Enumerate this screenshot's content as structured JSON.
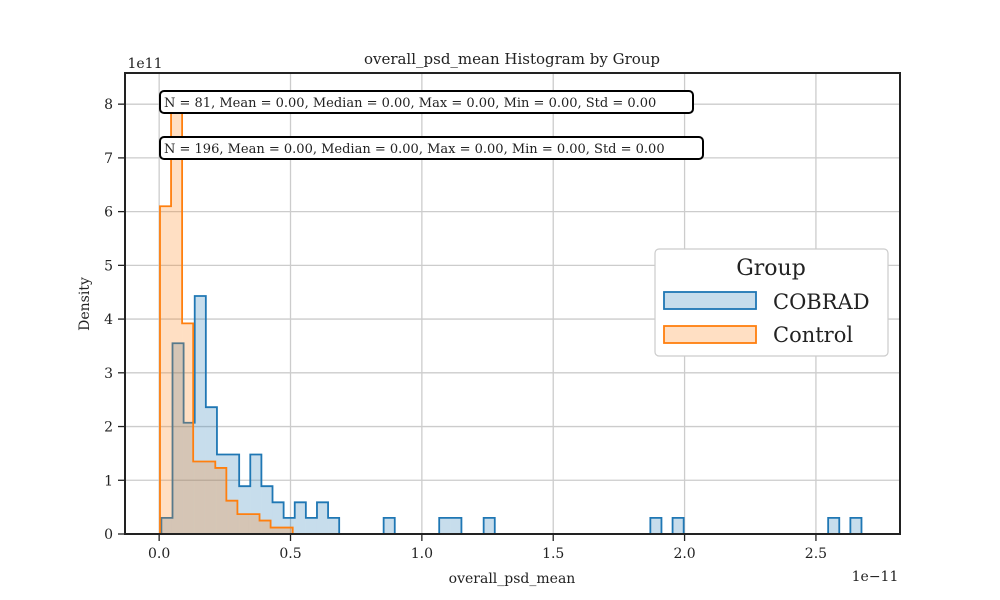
{
  "chart_data": {
    "type": "histogram",
    "title": "overall_psd_mean Histogram by Group",
    "xlabel": "overall_psd_mean",
    "ylabel": "Density",
    "x_offset_label": "1e−11",
    "y_offset_label": "1e11",
    "xlim": [
      -0.13,
      2.82
    ],
    "ylim": [
      0,
      8.58
    ],
    "x_ticks": [
      0.0,
      0.5,
      1.0,
      1.5,
      2.0,
      2.5
    ],
    "x_tick_labels": [
      "0.0",
      "0.5",
      "1.0",
      "1.5",
      "2.0",
      "2.5"
    ],
    "y_ticks": [
      0,
      1,
      2,
      3,
      4,
      5,
      6,
      7,
      8
    ],
    "y_tick_labels": [
      "0",
      "1",
      "2",
      "3",
      "4",
      "5",
      "6",
      "7",
      "8"
    ],
    "grid": true,
    "legend": {
      "title": "Group",
      "placement": "center-right",
      "entries": [
        "COBRAD",
        "Control"
      ]
    },
    "series": [
      {
        "name": "COBRAD",
        "stroke": "#1f77b4",
        "fill": "#1f77b4",
        "bin_edges": [
          0.0085,
          0.0508,
          0.0931,
          0.1354,
          0.1777,
          0.22,
          0.2623,
          0.3046,
          0.3469,
          0.3892,
          0.4315,
          0.4738,
          0.5161,
          0.5584,
          0.6007,
          0.643,
          0.6853,
          0.7276,
          0.7699,
          0.8122,
          0.8545,
          0.8968,
          0.9391,
          0.9814,
          1.0237,
          1.066,
          1.1083,
          1.1506,
          1.1929,
          1.2352,
          1.2775,
          1.3198,
          1.3621,
          1.4044,
          1.4467,
          1.489,
          1.5313,
          1.5736,
          1.6159,
          1.6582,
          1.7005,
          1.7428,
          1.7851,
          1.8274,
          1.8697,
          1.912,
          1.9543,
          1.9966,
          2.0389,
          2.0812,
          2.1235,
          2.1658,
          2.2081,
          2.2504,
          2.2927,
          2.335,
          2.3773,
          2.4196,
          2.4619,
          2.5042,
          2.5465,
          2.5888,
          2.6311,
          2.6734
        ],
        "densities": [
          0.3,
          3.55,
          2.07,
          4.43,
          2.36,
          1.48,
          1.48,
          0.89,
          1.48,
          0.89,
          0.59,
          0.3,
          0.59,
          0.3,
          0.59,
          0.3,
          0,
          0,
          0,
          0,
          0.3,
          0,
          0,
          0,
          0,
          0.3,
          0.3,
          0,
          0,
          0.3,
          0,
          0,
          0,
          0,
          0,
          0,
          0,
          0,
          0,
          0,
          0,
          0,
          0,
          0,
          0.3,
          0,
          0.3,
          0,
          0,
          0,
          0,
          0,
          0,
          0,
          0,
          0,
          0,
          0,
          0,
          0,
          0.3,
          0,
          0.3
        ]
      },
      {
        "name": "Control",
        "stroke": "#ff7f0e",
        "fill": "#ff7f0e",
        "bin_edges": [
          0.0032,
          0.0453,
          0.0874,
          0.1295,
          0.1716,
          0.2137,
          0.2558,
          0.2979,
          0.34,
          0.3821,
          0.4242,
          0.4663,
          0.5084
        ],
        "densities": [
          6.1,
          7.9,
          3.92,
          1.35,
          1.35,
          1.23,
          0.62,
          0.37,
          0.37,
          0.25,
          0.12,
          0.12
        ]
      }
    ],
    "annotations": [
      "N = 81, Mean = 0.00, Median = 0.00, Max = 0.00, Min = 0.00, Std = 0.00",
      "N = 196, Mean = 0.00, Median = 0.00, Max = 0.00, Min = 0.00, Std = 0.00"
    ]
  }
}
